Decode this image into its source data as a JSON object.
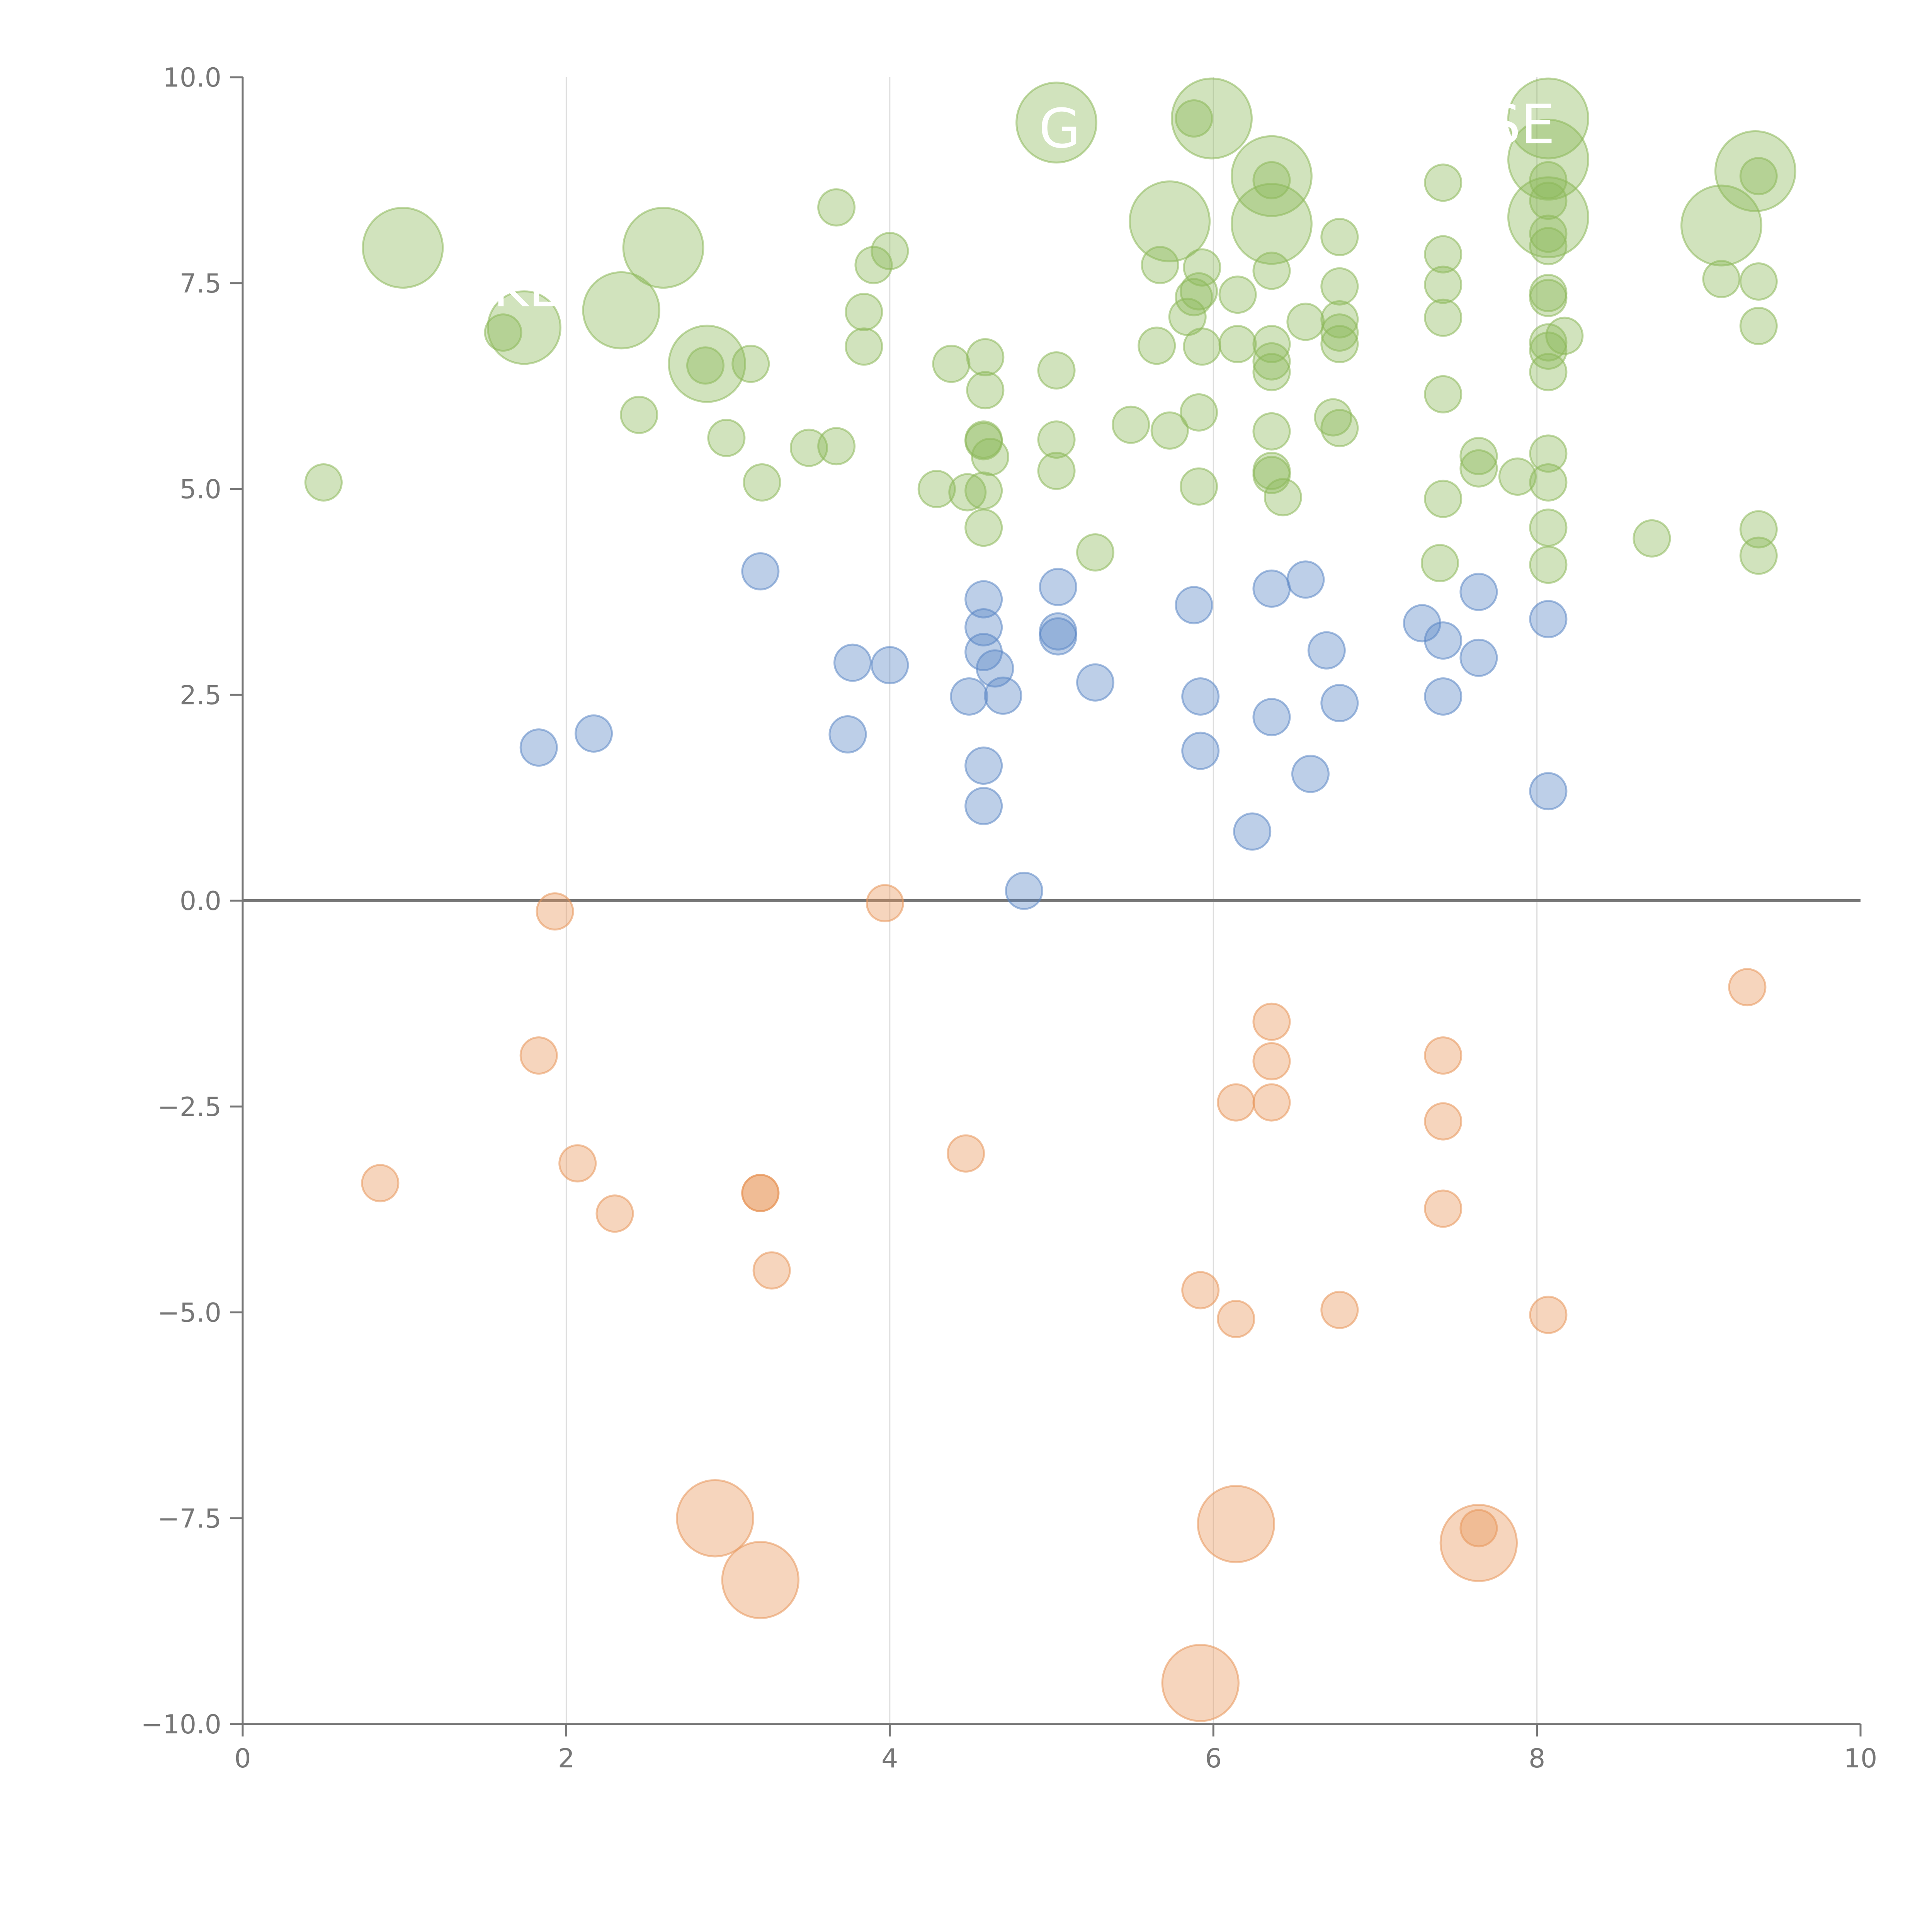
{
  "chart_data": {
    "type": "scatter",
    "title": "",
    "xlabel": "",
    "ylabel": "",
    "xlim": [
      0,
      10
    ],
    "ylim": [
      -10,
      10
    ],
    "x_ticks": [
      "0",
      "2",
      "4",
      "6",
      "8",
      "10"
    ],
    "x_tick_values": [
      0,
      2,
      4,
      6,
      8,
      10
    ],
    "y_ticks": [
      "10.0",
      "7.5",
      "5.0",
      "2.5",
      "0.0",
      "−2.5",
      "−5.0",
      "−7.5",
      "−10.0"
    ],
    "y_tick_values": [
      10,
      7.5,
      5,
      2.5,
      0,
      -2.5,
      -5,
      -7.5,
      -10
    ],
    "vertical_gridlines_at": [
      2,
      4,
      6,
      8
    ],
    "zero_line": 0,
    "colors": {
      "green": "#8db85a",
      "blue": "#5b86c5",
      "orange": "#e8955a",
      "axis": "#777777",
      "grid": "#dddddd",
      "zero": "#777777",
      "label": "#ffffff"
    },
    "series": [
      {
        "name": "green",
        "size_units": "relative bubble size",
        "points": [
          [
            0.5,
            5.08,
            1
          ],
          [
            0.99,
            7.93,
            2.2
          ],
          [
            1.61,
            6.9,
            1
          ],
          [
            1.74,
            6.96,
            2
          ],
          [
            2.34,
            7.17,
            2.1
          ],
          [
            2.45,
            5.9,
            1
          ],
          [
            2.6,
            7.93,
            2.2
          ],
          [
            2.86,
            6.5,
            1
          ],
          [
            2.87,
            6.52,
            2.1
          ],
          [
            2.99,
            5.62,
            1
          ],
          [
            3.14,
            6.52,
            1
          ],
          [
            3.21,
            5.08,
            1
          ],
          [
            3.5,
            5.5,
            1
          ],
          [
            3.67,
            8.42,
            1
          ],
          [
            3.67,
            5.52,
            1
          ],
          [
            3.84,
            7.15,
            1
          ],
          [
            3.84,
            6.73,
            1
          ],
          [
            3.9,
            7.72,
            1
          ],
          [
            4.0,
            7.89,
            1
          ],
          [
            4.29,
            5.0,
            1
          ],
          [
            4.38,
            6.52,
            1
          ],
          [
            4.48,
            4.96,
            1
          ],
          [
            4.58,
            4.53,
            1
          ],
          [
            4.58,
            4.98,
            1
          ],
          [
            4.58,
            5.6,
            1
          ],
          [
            4.58,
            5.58,
            1
          ],
          [
            4.59,
            6.2,
            1
          ],
          [
            4.59,
            6.6,
            1
          ],
          [
            4.62,
            5.39,
            1
          ],
          [
            5.03,
            9.45,
            2.2
          ],
          [
            5.03,
            6.44,
            1
          ],
          [
            5.03,
            5.6,
            1
          ],
          [
            5.03,
            5.22,
            1
          ],
          [
            5.27,
            4.23,
            1
          ],
          [
            5.49,
            5.78,
            1
          ],
          [
            5.65,
            6.74,
            1
          ],
          [
            5.67,
            7.72,
            1
          ],
          [
            5.73,
            5.71,
            1
          ],
          [
            5.73,
            8.25,
            2.2
          ],
          [
            5.84,
            7.09,
            1
          ],
          [
            5.88,
            7.33,
            1
          ],
          [
            5.88,
            9.5,
            1
          ],
          [
            5.91,
            5.93,
            1
          ],
          [
            5.91,
            5.03,
            1
          ],
          [
            5.91,
            7.4,
            1
          ],
          [
            5.93,
            6.73,
            1
          ],
          [
            5.93,
            7.69,
            1
          ],
          [
            5.99,
            9.5,
            2.2
          ],
          [
            6.15,
            6.76,
            1
          ],
          [
            6.15,
            7.36,
            1
          ],
          [
            6.36,
            8.22,
            2.2
          ],
          [
            6.36,
            8.8,
            2.2
          ],
          [
            6.36,
            8.75,
            1
          ],
          [
            6.36,
            7.65,
            1
          ],
          [
            6.36,
            6.76,
            1
          ],
          [
            6.36,
            6.55,
            1
          ],
          [
            6.36,
            6.42,
            1
          ],
          [
            6.36,
            5.7,
            1
          ],
          [
            6.36,
            5.22,
            1
          ],
          [
            6.36,
            5.17,
            1
          ],
          [
            6.43,
            4.9,
            1
          ],
          [
            6.57,
            7.03,
            1
          ],
          [
            6.74,
            5.87,
            1
          ],
          [
            6.78,
            5.74,
            1
          ],
          [
            6.78,
            6.76,
            1
          ],
          [
            6.78,
            6.9,
            1
          ],
          [
            6.78,
            7.06,
            1
          ],
          [
            6.78,
            7.46,
            1
          ],
          [
            6.78,
            8.06,
            1
          ],
          [
            7.42,
            8.72,
            1
          ],
          [
            7.42,
            7.85,
            1
          ],
          [
            7.42,
            7.48,
            1
          ],
          [
            7.42,
            7.08,
            1
          ],
          [
            7.42,
            6.15,
            1
          ],
          [
            7.42,
            4.88,
            1
          ],
          [
            7.4,
            4.1,
            1
          ],
          [
            7.64,
            5.4,
            1
          ],
          [
            7.64,
            5.25,
            1
          ],
          [
            7.88,
            5.15,
            1
          ],
          [
            8.07,
            9.5,
            2.2
          ],
          [
            8.07,
            9.0,
            2.2
          ],
          [
            8.07,
            8.3,
            2.2
          ],
          [
            8.07,
            8.5,
            1
          ],
          [
            8.07,
            8.75,
            1
          ],
          [
            8.07,
            8.1,
            1
          ],
          [
            8.07,
            7.95,
            1
          ],
          [
            8.07,
            7.38,
            1
          ],
          [
            8.07,
            6.78,
            1
          ],
          [
            8.07,
            6.68,
            1
          ],
          [
            8.07,
            6.42,
            1
          ],
          [
            8.07,
            5.43,
            1
          ],
          [
            8.07,
            5.08,
            1
          ],
          [
            8.07,
            4.53,
            1
          ],
          [
            8.07,
            4.08,
            1
          ],
          [
            8.07,
            7.32,
            1
          ],
          [
            8.17,
            6.86,
            1
          ],
          [
            8.71,
            4.4,
            1
          ],
          [
            9.14,
            7.55,
            1
          ],
          [
            9.14,
            8.2,
            2.2
          ],
          [
            9.35,
            8.86,
            2.2
          ],
          [
            9.37,
            8.8,
            1
          ],
          [
            9.37,
            7.52,
            1
          ],
          [
            9.37,
            6.98,
            1
          ],
          [
            9.37,
            4.51,
            1
          ],
          [
            9.37,
            4.19,
            1
          ]
        ]
      },
      {
        "name": "blue",
        "size_units": "relative bubble size",
        "points": [
          [
            1.83,
            1.86,
            1
          ],
          [
            2.17,
            2.03,
            1
          ],
          [
            3.2,
            4.0,
            1
          ],
          [
            3.74,
            2.02,
            1
          ],
          [
            3.77,
            2.89,
            1
          ],
          [
            4.0,
            2.86,
            1
          ],
          [
            4.49,
            2.48,
            1
          ],
          [
            4.58,
            3.66,
            1
          ],
          [
            4.58,
            3.32,
            1
          ],
          [
            4.58,
            3.02,
            1
          ],
          [
            4.58,
            1.64,
            1
          ],
          [
            4.58,
            1.15,
            1
          ],
          [
            4.65,
            2.82,
            1
          ],
          [
            4.7,
            2.49,
            1
          ],
          [
            4.83,
            0.12,
            1
          ],
          [
            5.04,
            3.81,
            1
          ],
          [
            5.04,
            3.27,
            1
          ],
          [
            5.04,
            3.21,
            1
          ],
          [
            5.27,
            2.65,
            1
          ],
          [
            5.88,
            3.59,
            1
          ],
          [
            5.92,
            2.48,
            1
          ],
          [
            5.92,
            1.82,
            1
          ],
          [
            6.24,
            0.84,
            1
          ],
          [
            6.36,
            3.79,
            1
          ],
          [
            6.36,
            2.23,
            1
          ],
          [
            6.57,
            3.9,
            1
          ],
          [
            6.6,
            1.54,
            1
          ],
          [
            6.7,
            3.04,
            1
          ],
          [
            6.78,
            2.4,
            1
          ],
          [
            7.29,
            3.37,
            1
          ],
          [
            7.42,
            3.16,
            1
          ],
          [
            7.42,
            2.48,
            1
          ],
          [
            7.64,
            3.75,
            1
          ],
          [
            7.64,
            2.95,
            1
          ],
          [
            8.07,
            3.42,
            1
          ],
          [
            8.07,
            1.33,
            1
          ]
        ]
      },
      {
        "name": "orange",
        "size_units": "relative bubble size",
        "points": [
          [
            0.85,
            -3.43,
            1
          ],
          [
            1.83,
            -1.88,
            1
          ],
          [
            1.93,
            -0.13,
            1
          ],
          [
            2.07,
            -3.19,
            1
          ],
          [
            2.3,
            -3.8,
            1
          ],
          [
            2.92,
            -7.5,
            2.1
          ],
          [
            3.2,
            -3.55,
            1
          ],
          [
            3.2,
            -3.55,
            1
          ],
          [
            3.2,
            -8.25,
            2.1
          ],
          [
            3.27,
            -4.49,
            1
          ],
          [
            3.97,
            -0.03,
            1
          ],
          [
            4.47,
            -3.07,
            1
          ],
          [
            5.92,
            -4.73,
            1
          ],
          [
            5.92,
            -9.5,
            2.1
          ],
          [
            6.14,
            -7.57,
            2.1
          ],
          [
            6.14,
            -2.45,
            1
          ],
          [
            6.14,
            -5.08,
            1
          ],
          [
            6.36,
            -1.47,
            1
          ],
          [
            6.36,
            -1.95,
            1
          ],
          [
            6.36,
            -2.45,
            1
          ],
          [
            6.78,
            -4.97,
            1
          ],
          [
            7.42,
            -1.88,
            1
          ],
          [
            7.42,
            -2.68,
            1
          ],
          [
            7.42,
            -3.74,
            1
          ],
          [
            7.64,
            -7.8,
            2.1
          ],
          [
            7.64,
            -7.62,
            1
          ],
          [
            8.07,
            -5.03,
            1
          ],
          [
            9.3,
            -1.05,
            1
          ]
        ]
      }
    ],
    "annotations": [
      {
        "text": "KL",
        "x": 1.75,
        "y": 7.22
      },
      {
        "text": "G",
        "x": 5.05,
        "y": 9.15
      },
      {
        "text": "SE",
        "x": 7.9,
        "y": 9.2
      }
    ]
  }
}
